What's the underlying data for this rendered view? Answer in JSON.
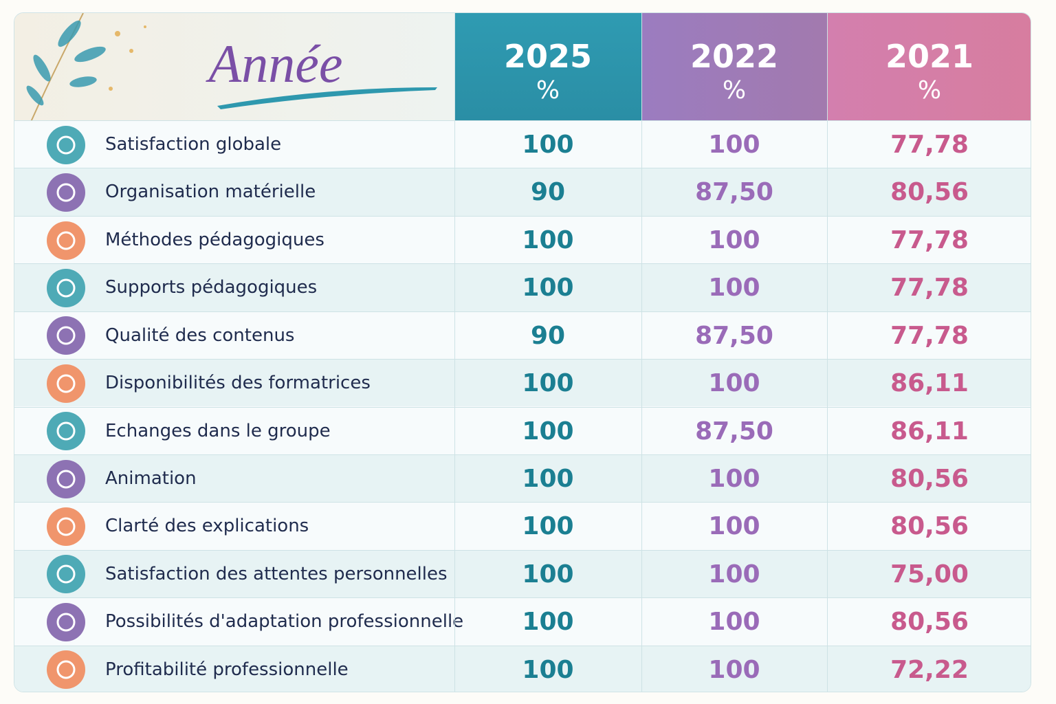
{
  "header": {
    "title": "Année",
    "columns": [
      {
        "year": "2025",
        "unit": "%"
      },
      {
        "year": "2022",
        "unit": "%"
      },
      {
        "year": "2021",
        "unit": "%"
      }
    ]
  },
  "table": {
    "rows": [
      {
        "label": "Satisfaction globale",
        "values": [
          "100",
          "100",
          "77,78"
        ]
      },
      {
        "label": "Organisation matérielle",
        "values": [
          "90",
          "87,50",
          "80,56"
        ]
      },
      {
        "label": "Méthodes pédagogiques",
        "values": [
          "100",
          "100",
          "77,78"
        ]
      },
      {
        "label": "Supports pédagogiques",
        "values": [
          "100",
          "100",
          "77,78"
        ]
      },
      {
        "label": "Qualité des contenus",
        "values": [
          "90",
          "87,50",
          "77,78"
        ]
      },
      {
        "label": "Disponibilités des formatrices",
        "values": [
          "100",
          "100",
          "86,11"
        ]
      },
      {
        "label": "Echanges dans le groupe",
        "values": [
          "100",
          "87,50",
          "86,11"
        ]
      },
      {
        "label": "Animation",
        "values": [
          "100",
          "100",
          "80,56"
        ]
      },
      {
        "label": "Clarté des explications",
        "values": [
          "100",
          "100",
          "80,56"
        ]
      },
      {
        "label": "Satisfaction des attentes personnelles",
        "values": [
          "100",
          "100",
          "75,00"
        ]
      },
      {
        "label": "Possibilités d'adaptation professionnelle",
        "values": [
          "100",
          "100",
          "80,56"
        ]
      },
      {
        "label": "Profitabilité professionnelle",
        "values": [
          "100",
          "100",
          "72,22"
        ]
      }
    ]
  }
}
